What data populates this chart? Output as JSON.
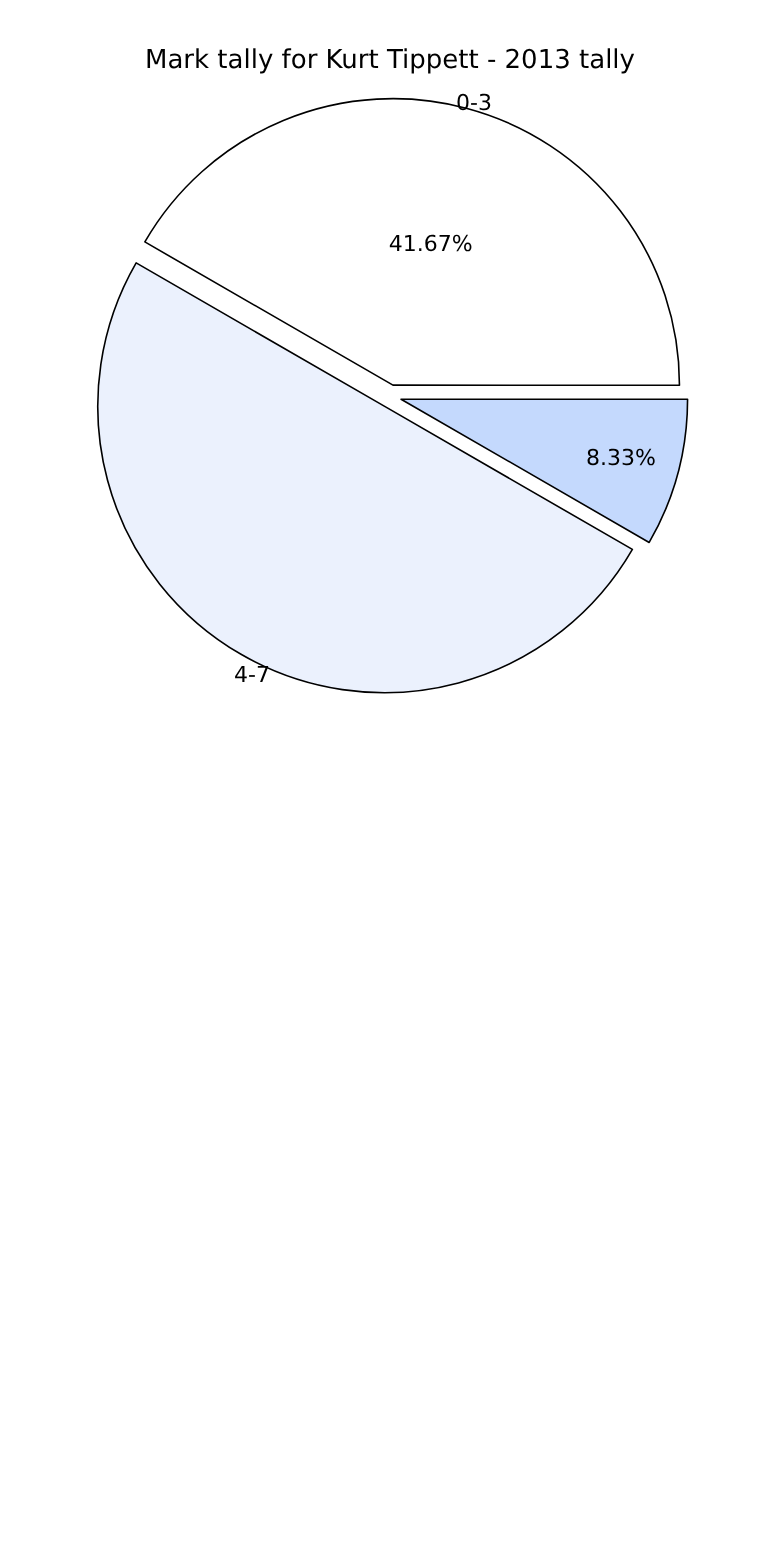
{
  "chart_data": {
    "type": "pie",
    "title": "Mark tally for Kurt Tippett - 2013 tally",
    "categories": [
      "0-3",
      "4-7",
      null
    ],
    "values": [
      41.67,
      50,
      8.33
    ],
    "value_labels": [
      "41.67%",
      null,
      "8.33%"
    ],
    "colors": [
      "#ffffff",
      "#ebf1fd",
      "#c4d9fd"
    ],
    "legend": false
  }
}
